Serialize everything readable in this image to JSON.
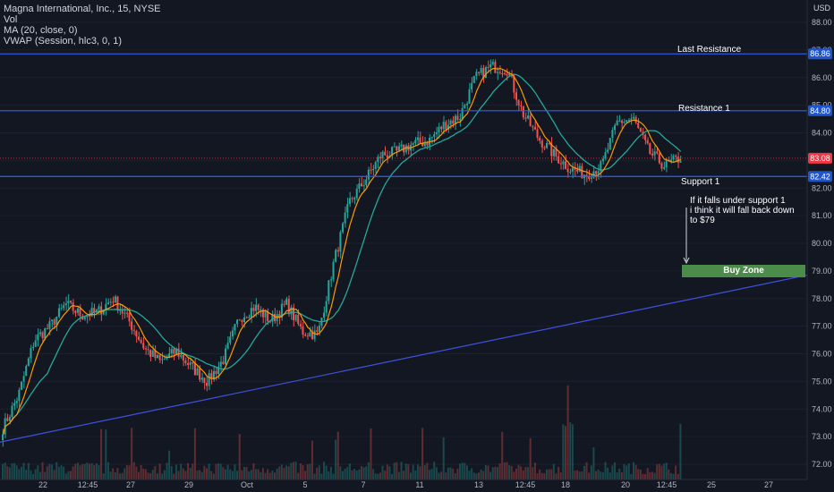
{
  "legend": {
    "symbol": "Magna International, Inc., 15, NYSE",
    "vol": "Vol",
    "ma": "MA (20, close, 0)",
    "vwap": "VWAP (Session, hlc3, 0, 1)"
  },
  "currency": "USD",
  "annotations": {
    "last_resistance": "Last Resistance",
    "resistance_1": "Resistance 1",
    "support_1": "Support 1",
    "note_lines": [
      "If it falls under support 1",
      "i think it will fall back down",
      "to $79"
    ],
    "buy_zone": "Buy Zone"
  },
  "colors": {
    "background": "#131722",
    "level_line": "#2962ff",
    "trend_line": "#3f51e0",
    "up": "#26a69a",
    "down": "#ef5350",
    "ma": "#26a69a",
    "vwap": "#ff9800",
    "buy_zone": "#4c8c4a",
    "price_label": "#1e56d0",
    "current_label": "#f23645"
  },
  "chart_data": {
    "type": "candlestick",
    "title": "Magna International, Inc., 15, NYSE",
    "ylim": [
      71.6,
      88.3
    ],
    "yticks": [
      72,
      73,
      74,
      75,
      76,
      77,
      78,
      79,
      80,
      81,
      82,
      83,
      84,
      85,
      86,
      87,
      88
    ],
    "yticklabels": [
      "72.00",
      "73.00",
      "74.00",
      "75.00",
      "76.00",
      "77.00",
      "78.00",
      "79.00",
      "80.00",
      "81.00",
      "82.00",
      "83.00",
      "84.00",
      "85.00",
      "86.00",
      "87.00",
      "88.00"
    ],
    "xticks": [
      "22",
      "12:45",
      "27",
      "29",
      "Oct",
      "5",
      "7",
      "11",
      "13",
      "12:45",
      "18",
      "20",
      "12:45",
      "25",
      "27"
    ],
    "price_levels": [
      {
        "name": "Last Resistance",
        "value": 86.86,
        "label": "86.86"
      },
      {
        "name": "Resistance 1",
        "value": 84.8,
        "label": "84.80"
      },
      {
        "name": "Support 1",
        "value": 82.42,
        "label": "82.42"
      }
    ],
    "current_price": {
      "value": 83.08,
      "label": "83.08"
    },
    "buy_zone": {
      "low": 78.85,
      "high": 79.1
    },
    "trendline": {
      "start": {
        "x": "20",
        "y": 72.8
      },
      "end": {
        "x": "27",
        "y": 78.85
      }
    },
    "price_path": [
      {
        "x": "20",
        "y": 73.3
      },
      {
        "x": "21",
        "y": 74.5
      },
      {
        "x": "22",
        "y": 76.5
      },
      {
        "x": "22",
        "y": 77.0
      },
      {
        "x": "12:45",
        "y": 77.8
      },
      {
        "x": "12:45",
        "y": 77.4
      },
      {
        "x": "27",
        "y": 77.5
      },
      {
        "x": "27",
        "y": 78.0
      },
      {
        "x": "28",
        "y": 77.2
      },
      {
        "x": "28",
        "y": 76.2
      },
      {
        "x": "29",
        "y": 75.7
      },
      {
        "x": "30",
        "y": 76.1
      },
      {
        "x": "30",
        "y": 75.5
      },
      {
        "x": "Oct",
        "y": 75.0
      },
      {
        "x": "2",
        "y": 75.8
      },
      {
        "x": "4",
        "y": 77.3
      },
      {
        "x": "5",
        "y": 77.7
      },
      {
        "x": "5",
        "y": 77.2
      },
      {
        "x": "6",
        "y": 77.8
      },
      {
        "x": "6",
        "y": 76.8
      },
      {
        "x": "6",
        "y": 76.7
      },
      {
        "x": "7",
        "y": 79.3
      },
      {
        "x": "7",
        "y": 81.5
      },
      {
        "x": "8",
        "y": 82.3
      },
      {
        "x": "8",
        "y": 83.2
      },
      {
        "x": "11",
        "y": 83.3
      },
      {
        "x": "12",
        "y": 83.6
      },
      {
        "x": "13",
        "y": 83.7
      },
      {
        "x": "14",
        "y": 84.3
      },
      {
        "x": "12:45",
        "y": 84.6
      },
      {
        "x": "12:45",
        "y": 86.0
      },
      {
        "x": "15",
        "y": 86.4
      },
      {
        "x": "18",
        "y": 86.3
      },
      {
        "x": "18",
        "y": 84.7
      },
      {
        "x": "19",
        "y": 83.8
      },
      {
        "x": "19",
        "y": 83.2
      },
      {
        "x": "20",
        "y": 82.7
      },
      {
        "x": "20",
        "y": 82.5
      },
      {
        "x": "20",
        "y": 82.8
      },
      {
        "x": "21",
        "y": 84.4
      },
      {
        "x": "12:45",
        "y": 84.5
      },
      {
        "x": "21",
        "y": 83.3
      },
      {
        "x": "22",
        "y": 82.8
      },
      {
        "x": "22",
        "y": 83.1
      }
    ]
  }
}
